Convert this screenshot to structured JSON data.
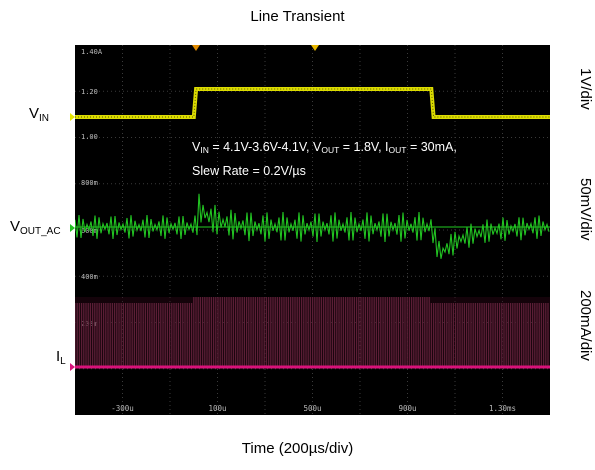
{
  "chart_data": {
    "type": "line",
    "title": "Line Transient",
    "xlabel": "Time (200µs/div)",
    "x_ticks": [
      "-300u",
      "100u",
      "500u",
      "900u",
      "1.30ms"
    ],
    "channels": [
      {
        "name_main": "V",
        "name_sub": "IN",
        "scale": "1V/div",
        "color": "#e8e800",
        "ticks": [
          "1.40A",
          "1.20",
          "1.00"
        ],
        "levels": [
          {
            "t": -500,
            "v": 1.0
          },
          {
            "t": 0,
            "v": 1.0
          },
          {
            "t": 10,
            "v": 1.2
          },
          {
            "t": 1000,
            "v": 1.2
          },
          {
            "t": 1010,
            "v": 1.0
          },
          {
            "t": 1500,
            "v": 1.0
          }
        ]
      },
      {
        "name_main": "V",
        "name_sub": "OUT_AC",
        "scale": "50mV/div",
        "color": "#22c322",
        "ticks": [
          "800m",
          "600m",
          "400m"
        ]
      },
      {
        "name_main": "I",
        "name_sub": "L",
        "scale": "200mA/div",
        "color": "#d9127a",
        "ticks": [
          "200m"
        ]
      }
    ],
    "annotation": {
      "l1_a": "V",
      "l1_a_sub": "IN",
      "l1_b": " = 4.1V-3.6V-4.1V, V",
      "l1_b_sub": "OUT",
      "l1_c": " = 1.8V, I",
      "l1_c_sub": "OUT",
      "l1_d": " = 30mA,",
      "l2": "Slew Rate = 0.2V/µs"
    },
    "grid": true
  }
}
